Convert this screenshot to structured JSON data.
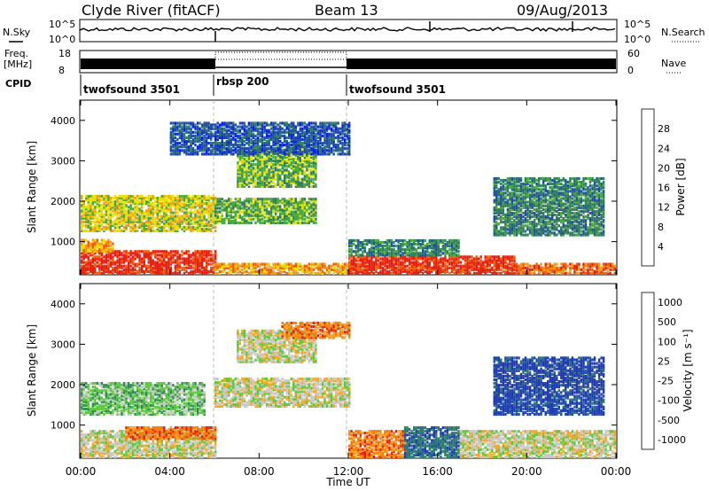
{
  "header": {
    "station": "Clyde River (fitACF)",
    "beam": "Beam 13",
    "date": "09/Aug/2013"
  },
  "top_panels": {
    "nsky_label": "N.Sky",
    "nsearch_label": "N.Search",
    "nsky_ticks": [
      "10^5",
      "10^0"
    ],
    "nsearch_ticks": [
      "10^5",
      "10^0"
    ],
    "freq_label_1": "Freq.",
    "freq_label_2": "[MHz]",
    "freq_ticks": [
      "18",
      "8"
    ],
    "nave_label": "Nave",
    "nave_ticks": [
      "60",
      "0"
    ],
    "cpid_label": "CPID",
    "cpid_segments": [
      {
        "label": "twofsound 3501",
        "start_h": 0,
        "end_h": 6
      },
      {
        "label": "rbsp 200",
        "start_h": 6,
        "end_h": 12
      },
      {
        "label": "twofsound 3501",
        "start_h": 12,
        "end_h": 24
      }
    ]
  },
  "chart_data": [
    {
      "type": "heatmap",
      "name": "power",
      "ylabel": "Slant Range [km]",
      "y_ticks": [
        "1000",
        "2000",
        "3000",
        "4000"
      ],
      "ylim": [
        180,
        4500
      ],
      "xlim": [
        0,
        24
      ],
      "colorbar_label": "Power [dB]",
      "colorbar_ticks": [
        "4",
        "8",
        "12",
        "16",
        "20",
        "24",
        "28"
      ],
      "colors": [
        "#0b1fe6",
        "#1e4fa0",
        "#2e7d5a",
        "#48a83a",
        "#e6e000",
        "#f39c12",
        "#f25c05",
        "#e61e10"
      ],
      "regions": [
        {
          "t0": 0.0,
          "t1": 6.0,
          "r0": 250,
          "r1": 800,
          "level": 7
        },
        {
          "t0": 6.0,
          "t1": 12.0,
          "r0": 250,
          "r1": 500,
          "level": 5
        },
        {
          "t0": 12.0,
          "t1": 19.5,
          "r0": 250,
          "r1": 700,
          "level": 7
        },
        {
          "t0": 19.5,
          "t1": 24.0,
          "r0": 250,
          "r1": 500,
          "level": 6
        },
        {
          "t0": 0.0,
          "t1": 1.5,
          "r0": 800,
          "r1": 1100,
          "level": 5
        },
        {
          "t0": 0.0,
          "t1": 6.0,
          "r0": 1300,
          "r1": 2200,
          "level": 4
        },
        {
          "t0": 6.0,
          "t1": 10.5,
          "r0": 1500,
          "r1": 2100,
          "level": 3
        },
        {
          "t0": 7.0,
          "t1": 10.5,
          "r0": 2400,
          "r1": 3400,
          "level": 3
        },
        {
          "t0": 12.0,
          "t1": 17.0,
          "r0": 700,
          "r1": 1100,
          "level": 2
        },
        {
          "t0": 18.5,
          "t1": 23.5,
          "r0": 1200,
          "r1": 2600,
          "level": 2
        },
        {
          "t0": 4.0,
          "t1": 12.0,
          "r0": 3200,
          "r1": 4000,
          "level": 1
        }
      ]
    },
    {
      "type": "heatmap",
      "name": "velocity",
      "ylabel": "Slant Range [km]",
      "y_ticks": [
        "1000",
        "2000",
        "3000",
        "4000"
      ],
      "ylim": [
        180,
        4500
      ],
      "xlim": [
        0,
        24
      ],
      "x_ticks": [
        "00:00",
        "04:00",
        "08:00",
        "12:00",
        "16:00",
        "20:00",
        "00:00"
      ],
      "xlabel": "Time UT",
      "colorbar_label": "Velocity [m s⁻¹]",
      "colorbar_ticks": [
        "1000",
        "500",
        "100",
        "25",
        "-25",
        "-100",
        "-500",
        "-1000"
      ],
      "colors": [
        "#1f3bb3",
        "#2a6f80",
        "#2e8b57",
        "#5cc83c",
        "#c8c8c8",
        "#f5a623",
        "#f57c00",
        "#e62010"
      ],
      "regions": [
        {
          "t0": 0.0,
          "t1": 6.0,
          "r0": 250,
          "r1": 900,
          "level": 4
        },
        {
          "t0": 0.0,
          "t1": 5.5,
          "r0": 1300,
          "r1": 2100,
          "level": 3
        },
        {
          "t0": 6.0,
          "t1": 12.0,
          "r0": 1500,
          "r1": 2200,
          "level": 4
        },
        {
          "t0": 7.0,
          "t1": 10.5,
          "r0": 2600,
          "r1": 3400,
          "level": 4
        },
        {
          "t0": 12.0,
          "t1": 14.5,
          "r0": 250,
          "r1": 900,
          "level": 6
        },
        {
          "t0": 14.5,
          "t1": 17.0,
          "r0": 250,
          "r1": 1000,
          "level": 1
        },
        {
          "t0": 17.0,
          "t1": 24.0,
          "r0": 250,
          "r1": 900,
          "level": 4
        },
        {
          "t0": 18.5,
          "t1": 23.5,
          "r0": 1300,
          "r1": 2700,
          "level": 0
        },
        {
          "t0": 9.0,
          "t1": 12.0,
          "r0": 3200,
          "r1": 3600,
          "level": 6
        },
        {
          "t0": 2.0,
          "t1": 6.0,
          "r0": 700,
          "r1": 1000,
          "level": 6
        }
      ]
    }
  ]
}
